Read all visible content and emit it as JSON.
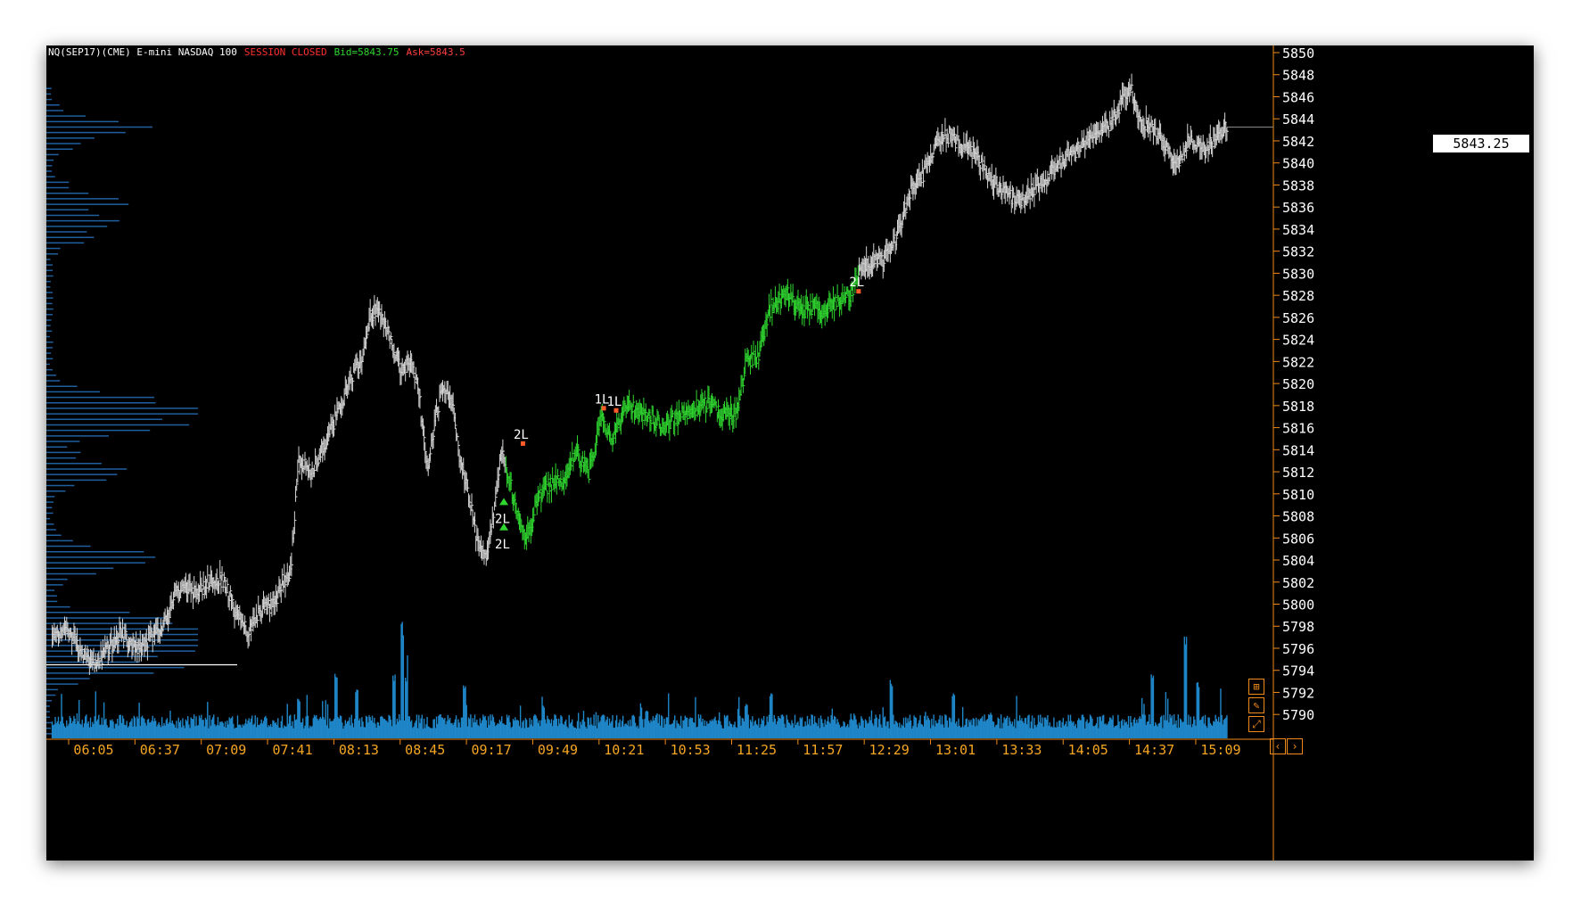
{
  "header": {
    "symbol": "NQ(SEP17)(CME) E-mini NASDAQ 100",
    "session": "SESSION CLOSED",
    "bid": "Bid=5843.75",
    "ask": "Ask=5843.5"
  },
  "last_price": "5843.25",
  "colors": {
    "background": "#000000",
    "price_neutral": "#d4d4d4",
    "price_long": "#2fd62f",
    "volume": "#1f86c8",
    "volume_profile": "#1f5f9e",
    "axis_text": "#ffffff",
    "time_text": "#f5a623",
    "session_red": "#ff3030",
    "bid_green": "#2fd62f",
    "ask_red": "#ff4040"
  },
  "chart_data": {
    "type": "bar",
    "subtype": "ohlc-with-volume-and-volume-profile",
    "y_axis": {
      "range": [
        5788,
        5851
      ],
      "ticks": [
        "5850",
        "5848",
        "5846",
        "5844",
        "5842",
        "5840",
        "5838",
        "5836",
        "5834",
        "5832",
        "5830",
        "5828",
        "5826",
        "5824",
        "5822",
        "5820",
        "5818",
        "5816",
        "5814",
        "5812",
        "5810",
        "5808",
        "5806",
        "5804",
        "5802",
        "5800",
        "5798",
        "5796",
        "5794",
        "5792",
        "5790"
      ]
    },
    "x_axis": {
      "ticks": [
        "06:05",
        "06:37",
        "07:09",
        "07:41",
        "08:13",
        "08:45",
        "09:17",
        "09:49",
        "10:21",
        "10:53",
        "11:25",
        "11:57",
        "12:29",
        "13:01",
        "13:33",
        "14:05",
        "14:37",
        "15:09"
      ],
      "start": "05:45",
      "end": "15:12"
    },
    "price_path": [
      [
        "05:45",
        5797.5
      ],
      [
        "05:55",
        5797
      ],
      [
        "06:02",
        5795
      ],
      [
        "06:06",
        5794.5
      ],
      [
        "06:12",
        5796
      ],
      [
        "06:18",
        5797.5
      ],
      [
        "06:24",
        5796
      ],
      [
        "06:30",
        5796.5
      ],
      [
        "06:36",
        5797.5
      ],
      [
        "06:40",
        5798.5
      ],
      [
        "06:44",
        5801
      ],
      [
        "06:50",
        5801.5
      ],
      [
        "06:56",
        5801
      ],
      [
        "07:02",
        5802.5
      ],
      [
        "07:08",
        5802
      ],
      [
        "07:12",
        5800
      ],
      [
        "07:16",
        5798.5
      ],
      [
        "07:20",
        5797.5
      ],
      [
        "07:26",
        5799.5
      ],
      [
        "07:32",
        5800
      ],
      [
        "07:36",
        5802
      ],
      [
        "07:40",
        5803
      ],
      [
        "07:44",
        5813
      ],
      [
        "07:50",
        5812
      ],
      [
        "07:58",
        5815
      ],
      [
        "08:06",
        5819
      ],
      [
        "08:14",
        5822
      ],
      [
        "08:18",
        5826
      ],
      [
        "08:22",
        5827
      ],
      [
        "08:26",
        5825
      ],
      [
        "08:30",
        5823
      ],
      [
        "08:34",
        5821
      ],
      [
        "08:38",
        5822
      ],
      [
        "08:42",
        5819
      ],
      [
        "08:46",
        5812
      ],
      [
        "08:50",
        5817
      ],
      [
        "08:54",
        5820
      ],
      [
        "08:58",
        5818
      ],
      [
        "09:02",
        5813
      ],
      [
        "09:06",
        5810
      ],
      [
        "09:10",
        5806
      ],
      [
        "09:14",
        5804
      ],
      [
        "09:18",
        5808
      ],
      [
        "09:22",
        5814
      ],
      [
        "09:26",
        5811
      ],
      [
        "09:30",
        5808
      ],
      [
        "09:34",
        5806
      ],
      [
        "09:40",
        5810
      ],
      [
        "09:46",
        5811
      ],
      [
        "09:52",
        5811
      ],
      [
        "09:58",
        5814
      ],
      [
        "10:04",
        5812
      ],
      [
        "10:10",
        5817
      ],
      [
        "10:16",
        5815
      ],
      [
        "10:22",
        5818
      ],
      [
        "10:28",
        5817.5
      ],
      [
        "10:34",
        5817
      ],
      [
        "10:40",
        5816
      ],
      [
        "10:46",
        5817
      ],
      [
        "10:52",
        5817.5
      ],
      [
        "10:58",
        5818
      ],
      [
        "11:04",
        5818
      ],
      [
        "11:10",
        5817
      ],
      [
        "11:16",
        5817.5
      ],
      [
        "11:20",
        5822
      ],
      [
        "11:26",
        5822.5
      ],
      [
        "11:32",
        5827
      ],
      [
        "11:40",
        5828
      ],
      [
        "11:46",
        5826.5
      ],
      [
        "11:52",
        5827
      ],
      [
        "11:58",
        5826.5
      ],
      [
        "12:04",
        5827.5
      ],
      [
        "12:10",
        5828
      ],
      [
        "12:16",
        5830.5
      ],
      [
        "12:22",
        5831
      ],
      [
        "12:28",
        5831.5
      ],
      [
        "12:34",
        5834
      ],
      [
        "12:40",
        5838
      ],
      [
        "12:46",
        5839
      ],
      [
        "12:52",
        5842
      ],
      [
        "12:58",
        5842.5
      ],
      [
        "13:04",
        5841.5
      ],
      [
        "13:10",
        5841
      ],
      [
        "13:16",
        5839
      ],
      [
        "13:22",
        5838
      ],
      [
        "13:28",
        5837
      ],
      [
        "13:34",
        5836.5
      ],
      [
        "13:40",
        5838
      ],
      [
        "13:46",
        5839
      ],
      [
        "13:52",
        5840
      ],
      [
        "13:58",
        5841
      ],
      [
        "14:04",
        5842
      ],
      [
        "14:10",
        5843
      ],
      [
        "14:16",
        5843.5
      ],
      [
        "14:22",
        5846
      ],
      [
        "14:26",
        5846.5
      ],
      [
        "14:30",
        5844
      ],
      [
        "14:36",
        5843
      ],
      [
        "14:42",
        5841.5
      ],
      [
        "14:48",
        5840
      ],
      [
        "14:54",
        5842
      ],
      [
        "15:00",
        5841
      ],
      [
        "15:06",
        5842
      ],
      [
        "15:12",
        5843.25
      ]
    ],
    "long_segment": {
      "start": "09:24",
      "end": "12:14"
    },
    "trade_markers": [
      {
        "label": "2L",
        "time": "09:23",
        "price": 5808.5,
        "kind": "entry"
      },
      {
        "label": "2L",
        "time": "09:23",
        "price": 5806.2,
        "kind": "entry"
      },
      {
        "label": "2L",
        "time": "09:32",
        "price": 5814.6,
        "kind": "exit"
      },
      {
        "label": "1L",
        "time": "10:11",
        "price": 5817.8,
        "kind": "exit"
      },
      {
        "label": "1L",
        "time": "10:17",
        "price": 5817.6,
        "kind": "exit"
      },
      {
        "label": "2L",
        "time": "12:14",
        "price": 5828.4,
        "kind": "exit"
      }
    ],
    "volume_spikes": [
      [
        "07:44",
        0.35
      ],
      [
        "08:02",
        0.55
      ],
      [
        "08:12",
        0.45
      ],
      [
        "08:30",
        0.55
      ],
      [
        "08:34",
        1.0
      ],
      [
        "08:36",
        0.55
      ],
      [
        "09:04",
        0.45
      ],
      [
        "09:42",
        0.3
      ],
      [
        "10:32",
        0.25
      ],
      [
        "11:20",
        0.3
      ],
      [
        "11:32",
        0.38
      ],
      [
        "12:30",
        0.5
      ],
      [
        "13:00",
        0.38
      ],
      [
        "14:36",
        0.55
      ],
      [
        "14:52",
        0.85
      ],
      [
        "14:58",
        0.5
      ]
    ],
    "horizontal_line_price": 5794.5,
    "volume_profile_peaks": [
      [
        5843,
        0.65
      ],
      [
        5836.5,
        0.5
      ],
      [
        5834,
        0.4
      ],
      [
        5818,
        0.82
      ],
      [
        5816,
        0.72
      ],
      [
        5812,
        0.58
      ],
      [
        5804,
        0.75
      ],
      [
        5798,
        0.95
      ],
      [
        5796.5,
        0.9
      ],
      [
        5794.5,
        0.8
      ]
    ]
  }
}
